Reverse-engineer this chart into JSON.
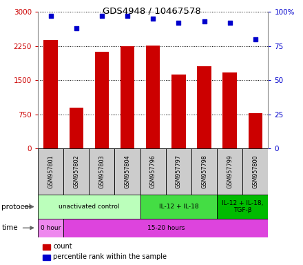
{
  "title": "GDS4948 / 10467578",
  "samples": [
    "GSM957801",
    "GSM957802",
    "GSM957803",
    "GSM957804",
    "GSM957796",
    "GSM957797",
    "GSM957798",
    "GSM957799",
    "GSM957800"
  ],
  "counts": [
    2380,
    900,
    2120,
    2250,
    2260,
    1620,
    1810,
    1670,
    780
  ],
  "percentile_ranks": [
    97,
    88,
    97,
    97,
    95,
    92,
    93,
    92,
    80
  ],
  "left_ylim": [
    0,
    3000
  ],
  "right_ylim": [
    0,
    100
  ],
  "left_yticks": [
    0,
    750,
    1500,
    2250,
    3000
  ],
  "right_yticks": [
    0,
    25,
    50,
    75,
    100
  ],
  "left_yticklabels": [
    "0",
    "750",
    "1500",
    "2250",
    "3000"
  ],
  "right_yticklabels": [
    "0",
    "25",
    "50",
    "75",
    "100%"
  ],
  "bar_color": "#cc0000",
  "dot_color": "#0000cc",
  "bar_width": 0.55,
  "protocol_groups": [
    {
      "label": "unactivated control",
      "start": 0,
      "end": 4,
      "color": "#bbffbb"
    },
    {
      "label": "IL-12 + IL-18",
      "start": 4,
      "end": 7,
      "color": "#44dd44"
    },
    {
      "label": "IL-12 + IL-18,\nTGF-β",
      "start": 7,
      "end": 9,
      "color": "#00bb00"
    }
  ],
  "time_groups": [
    {
      "label": "0 hour",
      "start": 0,
      "end": 1,
      "color": "#ee88ee"
    },
    {
      "label": "15-20 hours",
      "start": 1,
      "end": 9,
      "color": "#dd44dd"
    }
  ],
  "legend_count_label": "count",
  "legend_pct_label": "percentile rank within the sample",
  "protocol_label": "protocol",
  "time_label": "time",
  "sample_bg_color": "#cccccc",
  "grid_color": "#000000"
}
